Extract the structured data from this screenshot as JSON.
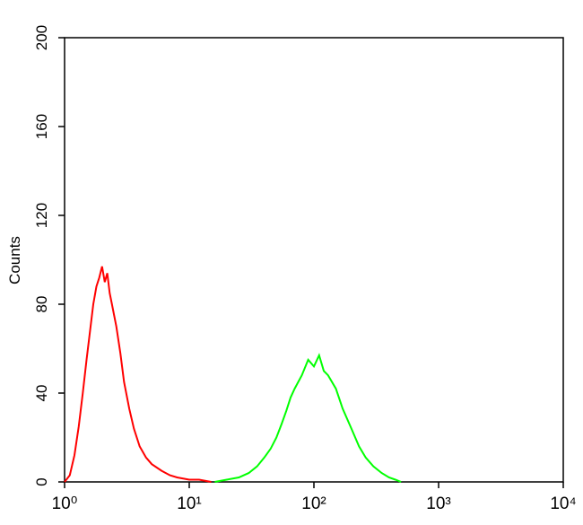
{
  "chart_data": {
    "type": "line",
    "y_label": "Counts",
    "x_log": true,
    "xlim": [
      1,
      10000
    ],
    "ylim": [
      0,
      200
    ],
    "xticks": [
      {
        "value": 1,
        "label": "10⁰"
      },
      {
        "value": 10,
        "label": "10¹"
      },
      {
        "value": 100,
        "label": "10²"
      },
      {
        "value": 1000,
        "label": "10³"
      },
      {
        "value": 10000,
        "label": "10⁴"
      }
    ],
    "yticks": [
      0,
      40,
      80,
      120,
      160,
      200
    ],
    "series": [
      {
        "color": "#ff0000",
        "x": [
          1.0,
          1.1,
          1.2,
          1.3,
          1.4,
          1.5,
          1.6,
          1.7,
          1.8,
          1.9,
          2.0,
          2.1,
          2.2,
          2.3,
          2.4,
          2.6,
          2.8,
          3.0,
          3.3,
          3.6,
          4.0,
          4.5,
          5.0,
          6,
          7,
          8,
          10,
          12,
          15
        ],
        "values": [
          0,
          3,
          12,
          25,
          40,
          55,
          68,
          80,
          88,
          92,
          97,
          90,
          94,
          85,
          80,
          70,
          58,
          45,
          33,
          24,
          16,
          11,
          8,
          5,
          3,
          2,
          1,
          1,
          0
        ]
      },
      {
        "color": "#00ff00",
        "x": [
          16,
          20,
          25,
          30,
          35,
          40,
          45,
          50,
          55,
          60,
          65,
          70,
          80,
          90,
          100,
          110,
          120,
          130,
          150,
          170,
          200,
          230,
          260,
          300,
          350,
          400,
          450,
          500
        ],
        "values": [
          0,
          1,
          2,
          4,
          7,
          11,
          15,
          20,
          26,
          32,
          38,
          42,
          48,
          55,
          52,
          57,
          50,
          48,
          42,
          33,
          24,
          16,
          11,
          7,
          4,
          2,
          1,
          0
        ]
      }
    ]
  }
}
